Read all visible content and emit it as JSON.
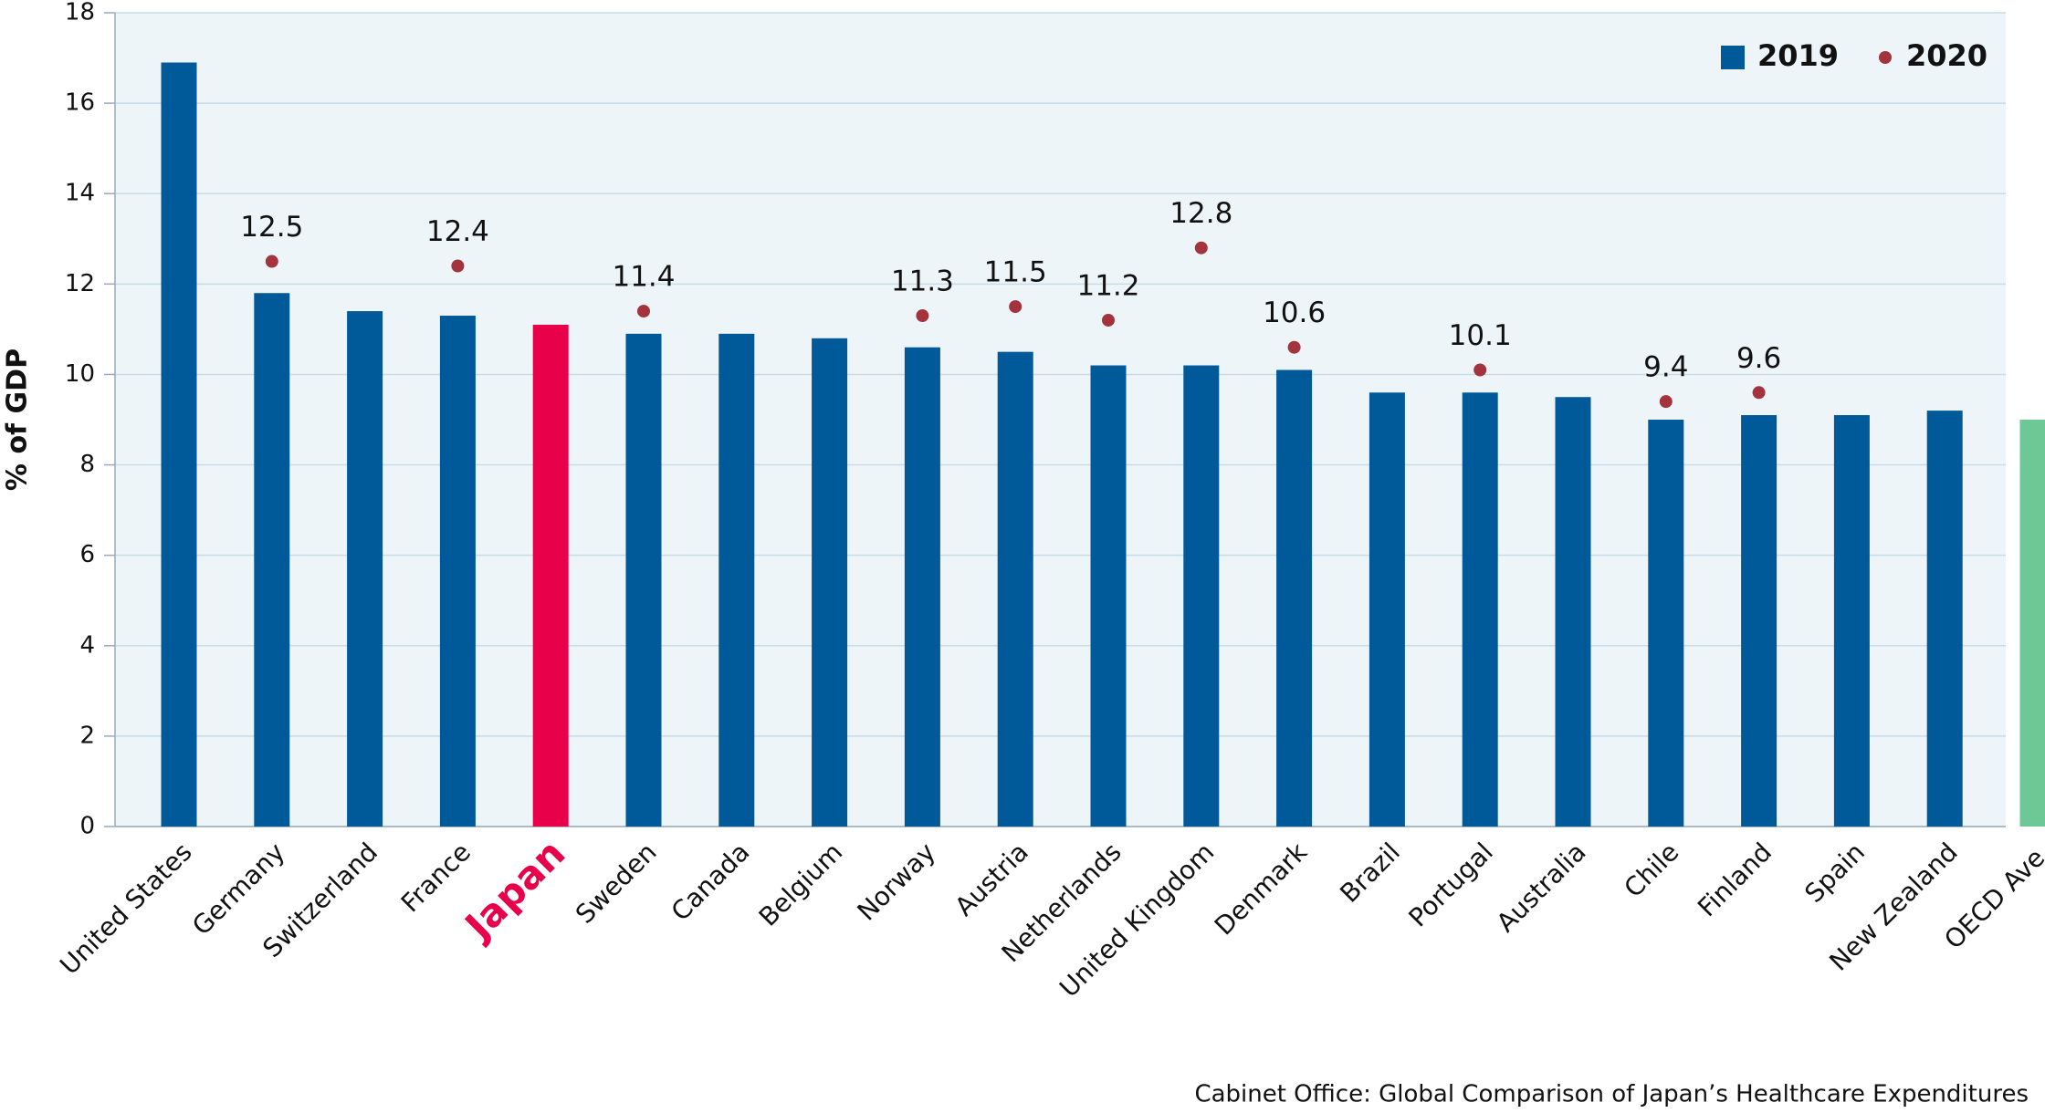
{
  "chart_data": {
    "type": "bar",
    "y_label": "% of GDP",
    "source": "Cabinet Office: Global Comparison of Japan’s Healthcare Expenditures",
    "categories": [
      "United States",
      "Germany",
      "Switzerland",
      "France",
      "Japan",
      "Sweden",
      "Canada",
      "Belgium",
      "Norway",
      "Austria",
      "Netherlands",
      "United Kingdom",
      "Denmark",
      "Brazil",
      "Portugal",
      "Australia",
      "Chile",
      "Finland",
      "Spain",
      "New Zealand",
      "OECD Ave."
    ],
    "highlight": "Japan",
    "highlight_color": "#e8004a",
    "series": [
      {
        "name": "2019",
        "color": "#005a9a",
        "bar_colors": [
          "#005a9a",
          "#005a9a",
          "#005a9a",
          "#005a9a",
          "#e8004a",
          "#005a9a",
          "#005a9a",
          "#005a9a",
          "#005a9a",
          "#005a9a",
          "#005a9a",
          "#005a9a",
          "#005a9a",
          "#005a9a",
          "#005a9a",
          "#005a9a",
          "#005a9a",
          "#005a9a",
          "#005a9a",
          "#005a9a",
          "#6dc895"
        ],
        "values": [
          16.9,
          11.8,
          11.4,
          11.3,
          11.1,
          10.9,
          10.9,
          10.8,
          10.6,
          10.5,
          10.2,
          10.2,
          10.1,
          9.6,
          9.6,
          9.5,
          9.0,
          9.1,
          9.1,
          9.2,
          9.0
        ]
      },
      {
        "name": "2020",
        "color": "#a3343e",
        "marker": "dot",
        "values": [
          null,
          12.5,
          null,
          12.4,
          null,
          11.4,
          null,
          null,
          11.3,
          11.5,
          11.2,
          12.8,
          10.6,
          null,
          10.1,
          null,
          9.4,
          9.6,
          null,
          null,
          null
        ]
      }
    ],
    "ylim": [
      0,
      18
    ],
    "yticks": [
      0,
      2,
      4,
      6,
      8,
      10,
      12,
      14,
      16,
      18
    ],
    "grid": true,
    "legend": "top-right"
  }
}
